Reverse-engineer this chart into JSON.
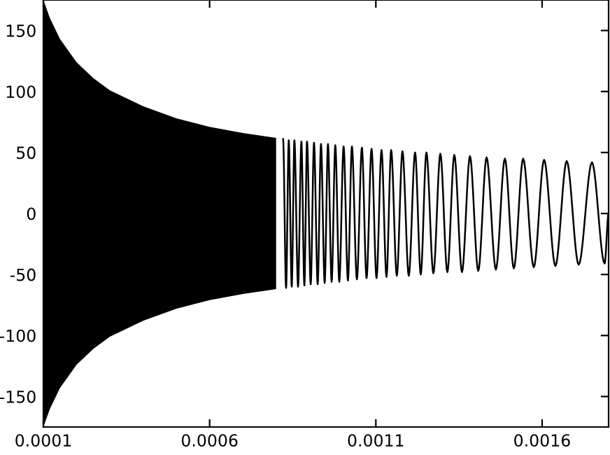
{
  "chart_data": {
    "type": "line",
    "xlim": [
      0.0001,
      0.0018
    ],
    "ylim": [
      -175,
      175
    ],
    "xticks": [
      0.0001,
      0.0006,
      0.0011,
      0.0016
    ],
    "yticks": [
      -150,
      -100,
      -50,
      0,
      50,
      100,
      150
    ],
    "grid": false,
    "legend": false,
    "marker": "none",
    "line_style": "solid",
    "series": [
      {
        "color": "#000000",
        "x": [
          0.0001,
          0.00012,
          0.00015,
          0.0002,
          0.00025,
          0.0003,
          0.0004,
          0.0005,
          0.0006,
          0.0007,
          0.0008,
          0.000821,
          0.00083,
          0.000838,
          0.000847,
          0.000855,
          0.000866,
          0.000876,
          0.000885,
          0.000893,
          0.000904,
          0.000914,
          0.000925,
          0.000935,
          0.000946,
          0.000956,
          0.000967,
          0.000978,
          0.00099,
          0.001003,
          0.001016,
          0.001028,
          0.001043,
          0.001058,
          0.001072,
          0.001087,
          0.001102,
          0.001117,
          0.001132,
          0.001146,
          0.001163,
          0.00118,
          0.001199,
          0.001218,
          0.001235,
          0.001252,
          0.001273,
          0.001294,
          0.001315,
          0.001336,
          0.001359,
          0.001383,
          0.001408,
          0.001433,
          0.001461,
          0.001488,
          0.001515,
          0.001543,
          0.001575,
          0.001606,
          0.00164,
          0.001674,
          0.00171,
          0.00175,
          0.001788,
          0.0018
        ],
        "values": [
          null,
          null,
          null,
          null,
          null,
          null,
          null,
          null,
          null,
          null,
          null,
          61,
          -61,
          60,
          -60,
          60,
          -60,
          59,
          -59,
          59,
          -58,
          58,
          -58,
          57,
          -57,
          57,
          -56,
          56,
          -56,
          55,
          -55,
          55,
          -54,
          54,
          -53,
          53,
          -53,
          52,
          -52,
          52,
          -51,
          51,
          -51,
          50,
          -50,
          50,
          -49,
          49,
          -48,
          48,
          -48,
          47,
          -47,
          46,
          -46,
          45,
          -45,
          45,
          -44,
          44,
          -43,
          43,
          -42,
          42,
          -41,
          0
        ],
        "lower": [
          -175,
          -160,
          -143,
          -124,
          -111,
          -101,
          -88,
          -78,
          -71,
          -66,
          -62,
          null,
          null,
          null,
          null,
          null,
          null,
          null,
          null,
          null,
          null,
          null,
          null,
          null,
          null,
          null,
          null,
          null,
          null,
          null,
          null,
          null,
          null,
          null,
          null,
          null,
          null,
          null,
          null,
          null,
          null,
          null,
          null,
          null,
          null,
          null,
          null,
          null,
          null,
          null,
          null,
          null,
          null,
          null,
          null,
          null,
          null,
          null,
          null,
          null,
          null,
          null,
          null,
          null,
          null,
          null
        ],
        "upper": [
          175,
          160,
          143,
          124,
          111,
          101,
          88,
          78,
          71,
          66,
          62,
          null,
          null,
          null,
          null,
          null,
          null,
          null,
          null,
          null,
          null,
          null,
          null,
          null,
          null,
          null,
          null,
          null,
          null,
          null,
          null,
          null,
          null,
          null,
          null,
          null,
          null,
          null,
          null,
          null,
          null,
          null,
          null,
          null,
          null,
          null,
          null,
          null,
          null,
          null,
          null,
          null,
          null,
          null,
          null,
          null,
          null,
          null,
          null,
          null,
          null,
          null,
          null,
          null,
          null,
          null
        ]
      }
    ]
  }
}
